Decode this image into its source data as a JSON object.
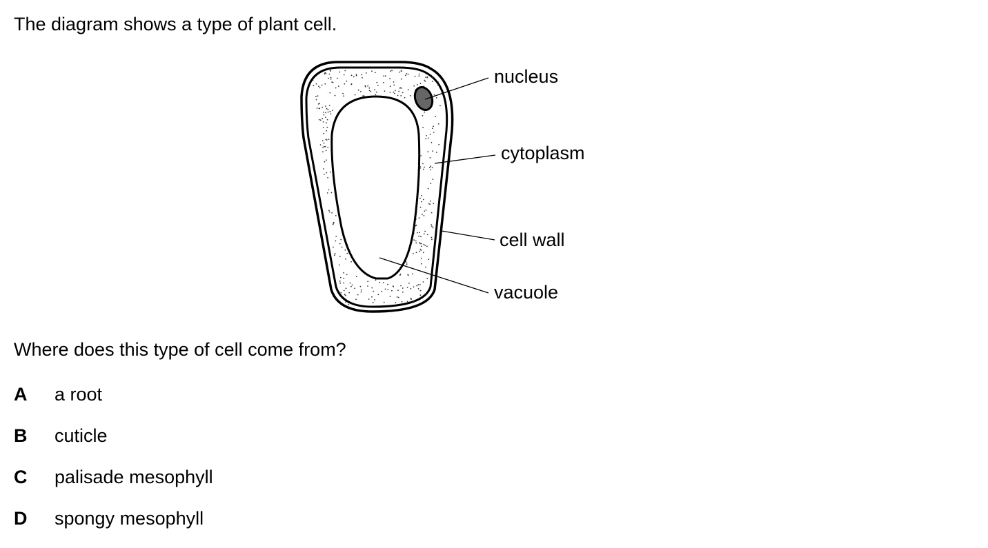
{
  "intro": "The diagram shows a type of plant cell.",
  "diagram": {
    "labels": {
      "nucleus": "nucleus",
      "cytoplasm": "cytoplasm",
      "cell_wall": "cell wall",
      "vacuole": "vacuole"
    }
  },
  "question": "Where does this type of cell come from?",
  "options": [
    {
      "letter": "A",
      "text": "a root"
    },
    {
      "letter": "B",
      "text": "cuticle"
    },
    {
      "letter": "C",
      "text": "palisade mesophyll"
    },
    {
      "letter": "D",
      "text": "spongy mesophyll"
    }
  ]
}
